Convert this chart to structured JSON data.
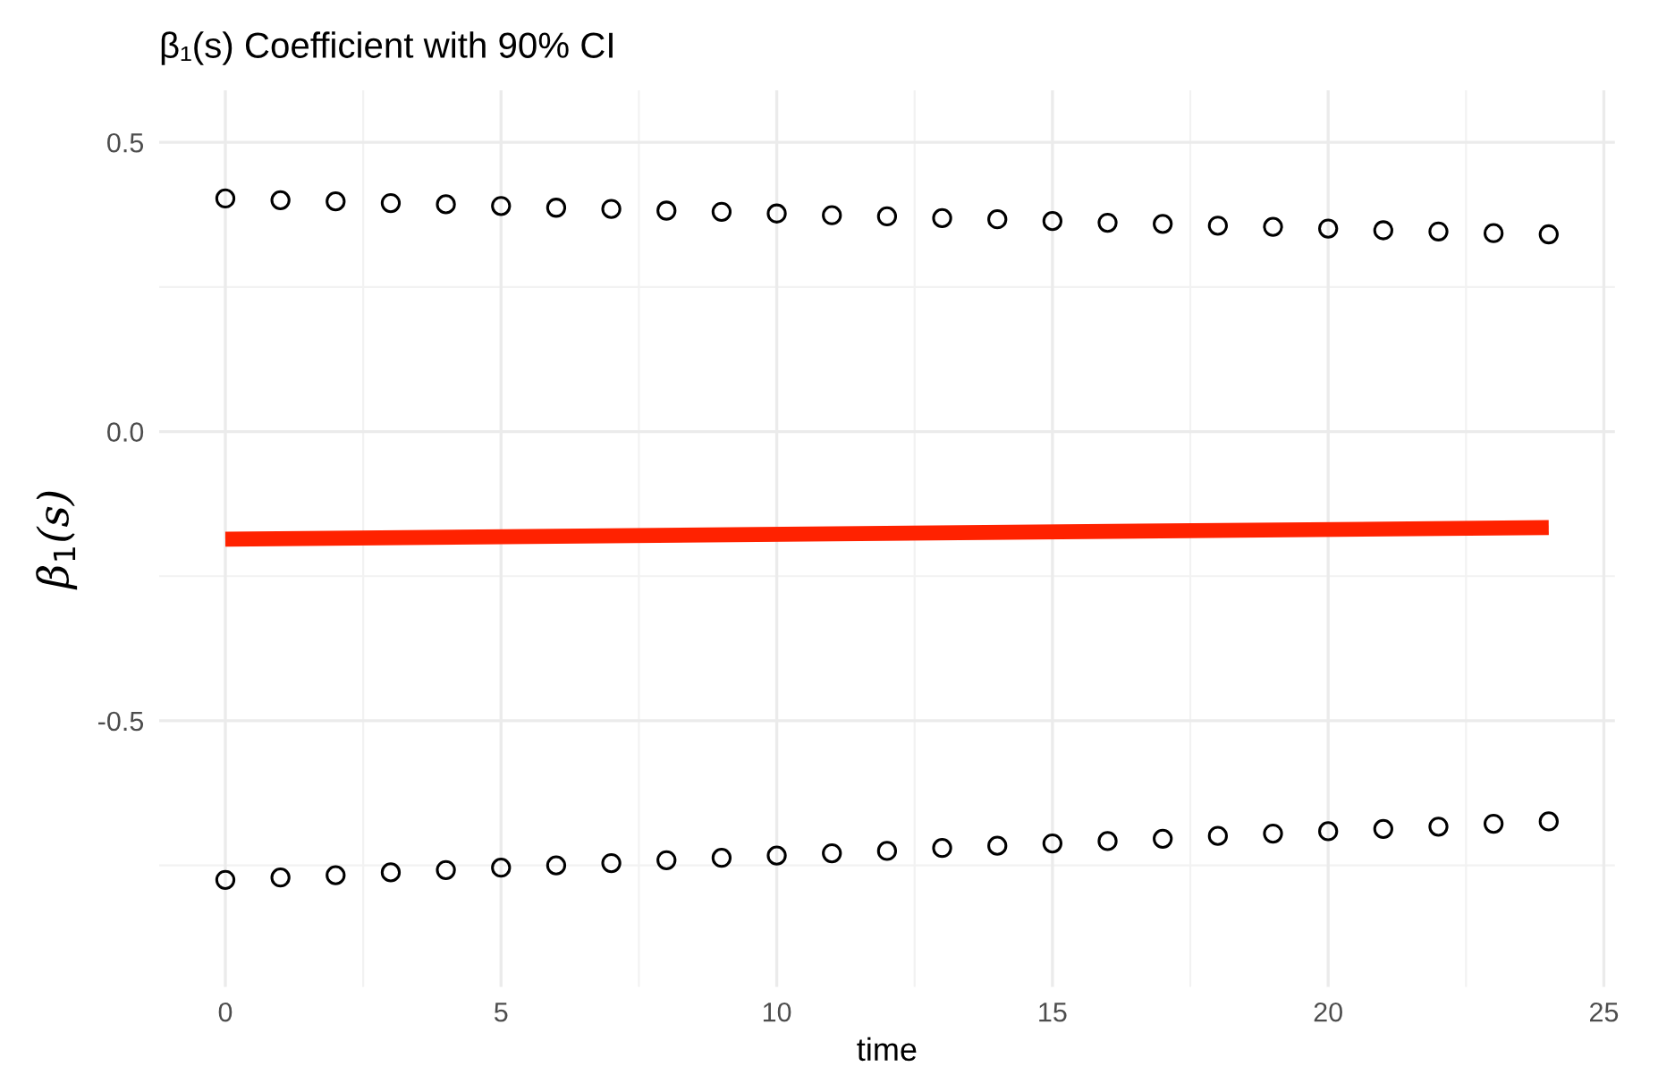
{
  "chart_data": {
    "type": "scatter",
    "title": "β₁(s) Coefficient with 90% CI",
    "xlabel": "time",
    "ylabel": "β$_{1}$(s)",
    "x": [
      0,
      1,
      2,
      3,
      4,
      5,
      6,
      7,
      8,
      9,
      10,
      11,
      12,
      13,
      14,
      15,
      16,
      17,
      18,
      19,
      20,
      21,
      22,
      23,
      24
    ],
    "series": [
      {
        "color": "#000000",
        "marker": "circle",
        "values": [
          0.403,
          0.4,
          0.398,
          0.395,
          0.393,
          0.39,
          0.387,
          0.385,
          0.382,
          0.38,
          0.377,
          0.374,
          0.372,
          0.369,
          0.367,
          0.364,
          0.361,
          0.359,
          0.356,
          0.354,
          0.351,
          0.348,
          0.346,
          0.343,
          0.341
        ]
      },
      {
        "color": "#000000",
        "marker": "circle",
        "values": [
          -0.775,
          -0.771,
          -0.767,
          -0.762,
          -0.758,
          -0.754,
          -0.75,
          -0.746,
          -0.741,
          -0.737,
          -0.733,
          -0.729,
          -0.725,
          -0.72,
          -0.716,
          -0.712,
          -0.708,
          -0.704,
          -0.699,
          -0.695,
          -0.691,
          -0.687,
          -0.683,
          -0.678,
          -0.674
        ]
      },
      {
        "type": "line",
        "color": "#ff2200",
        "line_style": "solid",
        "x": [
          0,
          24
        ],
        "values": [
          -0.186,
          -0.166
        ]
      }
    ],
    "xlim": [
      -1.2,
      25.2
    ],
    "ylim": [
      -0.96,
      0.59
    ],
    "xticks": [
      0,
      5,
      10,
      15,
      20,
      25
    ],
    "yticks": [
      {
        "value": 0.5,
        "label": "0.5"
      },
      {
        "value": 0.0,
        "label": "0.0"
      },
      {
        "value": -0.5,
        "label": "-0.5"
      }
    ],
    "grid": true
  }
}
